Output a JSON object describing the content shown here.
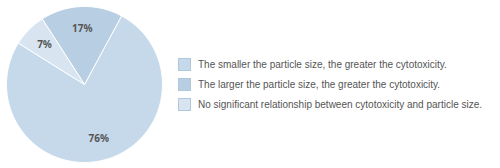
{
  "chart_data": {
    "type": "pie",
    "categories": [
      "The smaller the particle size, the greater the cytotoxicity.",
      "The larger the particle size, the greater the cytotoxicity.",
      "No significant relationship between cytotoxicity and particle size."
    ],
    "values": [
      76,
      17,
      7
    ],
    "value_labels": [
      "76%",
      "17%",
      "7%"
    ],
    "data_labels": true,
    "colors": [
      "#c5d9ea",
      "#b8cfe3",
      "#d8e5f0"
    ],
    "legend": "right"
  }
}
